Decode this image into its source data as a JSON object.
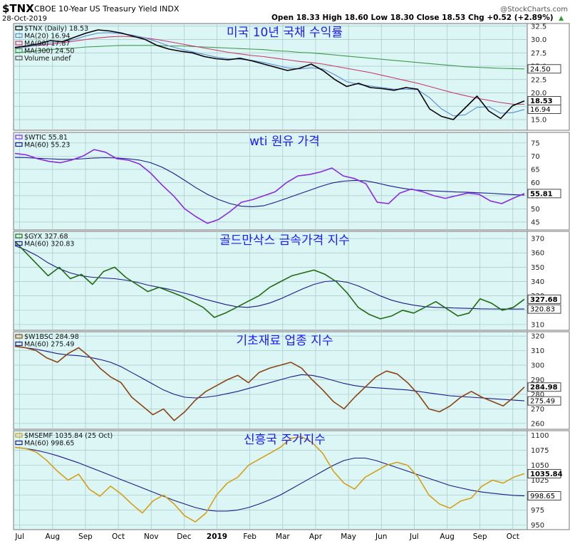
{
  "header": {
    "symbol": "$TNX",
    "description": "CBOE 10-Year US Treasury Yield  INDX",
    "date": "28-Oct-2019",
    "credit": "@StockCharts.com",
    "ohlc": "Open 18.33  High 18.60  Low 18.30  Close 18.53  Chg +0.52 (+2.89%)",
    "ohlc_arrow": "▲"
  },
  "x_axis": {
    "labels": [
      "Jul",
      "Aug",
      "Sep",
      "Oct",
      "Nov",
      "Dec",
      "2019",
      "Feb",
      "Mar",
      "Apr",
      "May",
      "Jun",
      "Jul",
      "Aug",
      "Sep",
      "Oct"
    ]
  },
  "chart_data": [
    {
      "type": "line",
      "panel": "tnx",
      "annotation": "미국 10년 국채 수익률",
      "legend": [
        "$TNX (Daily) 18.53",
        "MA(20) 16.94",
        "MA(90) 17.87",
        "MA(300) 24.50",
        "Volume undef"
      ],
      "ylim": [
        13,
        33
      ],
      "ticks": [
        "32.5",
        "30.0",
        "27.5",
        "25.0",
        "22.5",
        "20.0",
        "17.5",
        "15.0"
      ],
      "last_labels": [
        "24.50",
        "18.53",
        "16.94"
      ],
      "series": [
        {
          "name": "$TNX",
          "color": "#000000",
          "values": [
            28.5,
            28.8,
            29.2,
            29.8,
            29.6,
            30.4,
            31.2,
            31.8,
            31.6,
            31.2,
            30.6,
            30.0,
            28.9,
            28.2,
            27.8,
            27.5,
            26.8,
            26.4,
            26.2,
            26.5,
            26.0,
            25.4,
            24.8,
            24.2,
            24.6,
            25.4,
            24.2,
            22.5,
            21.2,
            21.8,
            21.0,
            20.8,
            20.5,
            21.0,
            20.7,
            17.0,
            15.6,
            15.0,
            17.2,
            19.4,
            16.6,
            15.2,
            17.6,
            18.5
          ]
        },
        {
          "name": "MA(20)",
          "color": "#5a8bd6",
          "values": [
            28.4,
            28.6,
            29.0,
            29.4,
            29.6,
            30.0,
            30.7,
            31.2,
            31.3,
            31.1,
            30.8,
            30.3,
            29.6,
            28.8,
            28.2,
            27.7,
            27.2,
            26.7,
            26.4,
            26.3,
            26.1,
            25.7,
            25.2,
            24.7,
            24.5,
            24.7,
            24.5,
            23.4,
            22.1,
            21.6,
            21.3,
            21.0,
            20.7,
            20.7,
            20.6,
            19.1,
            17.0,
            15.7,
            15.9,
            17.3,
            17.4,
            16.2,
            16.3,
            16.9
          ]
        },
        {
          "name": "MA(90)",
          "color": "#c8386a",
          "values": [
            28.6,
            28.7,
            28.9,
            29.1,
            29.4,
            29.7,
            30.0,
            30.3,
            30.5,
            30.6,
            30.5,
            30.3,
            30.0,
            29.6,
            29.2,
            28.8,
            28.4,
            28.0,
            27.6,
            27.3,
            27.0,
            26.8,
            26.5,
            26.2,
            25.9,
            25.7,
            25.4,
            25.0,
            24.6,
            24.2,
            23.8,
            23.3,
            22.8,
            22.3,
            21.8,
            21.2,
            20.6,
            20.0,
            19.5,
            19.0,
            18.6,
            18.2,
            17.9,
            17.87
          ]
        },
        {
          "name": "MA(300)",
          "color": "#3f9a4c",
          "values": [
            27.5,
            27.7,
            27.9,
            28.1,
            28.3,
            28.4,
            28.6,
            28.7,
            28.8,
            28.9,
            28.9,
            28.9,
            28.9,
            28.8,
            28.8,
            28.7,
            28.6,
            28.5,
            28.4,
            28.3,
            28.2,
            28.1,
            27.9,
            27.8,
            27.6,
            27.5,
            27.3,
            27.1,
            26.9,
            26.7,
            26.5,
            26.3,
            26.1,
            25.9,
            25.7,
            25.5,
            25.3,
            25.1,
            24.9,
            24.8,
            24.7,
            24.6,
            24.55,
            24.5
          ]
        }
      ]
    },
    {
      "type": "line",
      "panel": "wtic",
      "annotation": "wti 원유 가격",
      "legend": [
        "$WTIC 55.81",
        "MA(60) 55.23"
      ],
      "ylim": [
        42,
        79
      ],
      "ticks": [
        "75",
        "70",
        "65",
        "60",
        "55",
        "50",
        "45"
      ],
      "last_labels": [
        "55.81"
      ],
      "series": [
        {
          "name": "$WTIC",
          "color": "#8a2be2",
          "values": [
            71.0,
            70.5,
            69.0,
            68.0,
            67.5,
            68.5,
            70.0,
            72.5,
            71.5,
            69.0,
            68.5,
            67.0,
            63.5,
            59.0,
            55.0,
            50.0,
            47.0,
            44.5,
            46.0,
            49.0,
            52.5,
            53.5,
            55.0,
            56.5,
            60.0,
            62.5,
            63.0,
            64.0,
            65.5,
            62.5,
            61.5,
            59.5,
            52.5,
            52.0,
            56.0,
            57.5,
            56.5,
            55.0,
            54.0,
            55.0,
            56.0,
            55.5,
            53.0,
            52.0,
            54.0,
            55.81
          ]
        },
        {
          "name": "MA(60)",
          "color": "#1a1a8c",
          "values": [
            69.5,
            69.4,
            69.2,
            69.0,
            68.8,
            68.8,
            69.0,
            69.3,
            69.4,
            69.3,
            69.0,
            68.5,
            67.5,
            65.8,
            63.5,
            60.8,
            58.0,
            55.5,
            53.5,
            52.0,
            51.0,
            50.8,
            51.2,
            52.5,
            54.0,
            55.5,
            57.0,
            58.5,
            59.8,
            60.5,
            60.8,
            60.6,
            59.8,
            58.8,
            58.0,
            57.3,
            57.0,
            56.8,
            56.6,
            56.4,
            56.3,
            56.1,
            55.9,
            55.6,
            55.4,
            55.23
          ]
        }
      ]
    },
    {
      "type": "line",
      "panel": "gyx",
      "annotation": "골드만삭스 금속가격 지수",
      "legend": [
        "$GYX 327.68",
        "MA(60) 320.83"
      ],
      "ylim": [
        306,
        375
      ],
      "ticks": [
        "370",
        "360",
        "350",
        "340",
        "330",
        "320",
        "310"
      ],
      "last_labels": [
        "327.68",
        "320.83"
      ],
      "series": [
        {
          "name": "$GYX",
          "color": "#1f6b12",
          "values": [
            368.0,
            360.0,
            352.0,
            344.0,
            350.0,
            342.0,
            345.0,
            338.0,
            347.0,
            350.0,
            343.0,
            338.0,
            333.0,
            336.0,
            333.0,
            330.0,
            326.0,
            322.0,
            315.0,
            318.0,
            322.0,
            326.0,
            330.0,
            336.0,
            340.0,
            344.0,
            346.0,
            348.0,
            345.0,
            340.0,
            332.0,
            322.0,
            317.0,
            314.0,
            316.0,
            320.0,
            318.0,
            322.0,
            326.0,
            321.0,
            316.0,
            318.0,
            328.0,
            325.0,
            320.0,
            322.0,
            327.68
          ]
        },
        {
          "name": "MA(60)",
          "color": "#1a1a8c",
          "values": [
            365.0,
            362.0,
            358.0,
            353.0,
            349.0,
            346.0,
            344.0,
            343.0,
            342.5,
            342.0,
            341.0,
            339.5,
            337.5,
            336.0,
            334.5,
            332.5,
            330.5,
            328.0,
            326.0,
            324.0,
            322.5,
            322.0,
            323.0,
            325.0,
            328.0,
            331.5,
            335.0,
            338.0,
            340.0,
            340.5,
            339.5,
            337.0,
            333.5,
            330.0,
            327.0,
            325.0,
            323.5,
            322.5,
            322.0,
            321.8,
            321.5,
            321.3,
            321.0,
            320.9,
            320.85,
            320.8,
            320.83
          ]
        }
      ]
    },
    {
      "type": "line",
      "panel": "w1bsc",
      "annotation": "기초재료 업종 지수",
      "legend": [
        "$W1BSC 284.98",
        "MA(60) 275.49"
      ],
      "ylim": [
        256,
        323
      ],
      "ticks": [
        "320",
        "310",
        "300",
        "290",
        "280",
        "270",
        "260"
      ],
      "last_labels": [
        "284.98",
        "275.49"
      ],
      "series": [
        {
          "name": "$W1BSC",
          "color": "#8b4513",
          "values": [
            313.0,
            312.0,
            310.0,
            305.0,
            302.0,
            308.0,
            312.0,
            306.0,
            298.0,
            292.0,
            288.0,
            278.0,
            272.0,
            266.0,
            270.0,
            262.0,
            268.0,
            276.0,
            282.0,
            286.0,
            290.0,
            293.0,
            288.0,
            295.0,
            298.0,
            300.0,
            302.0,
            298.0,
            290.0,
            283.0,
            275.0,
            270.0,
            278.0,
            285.0,
            292.0,
            296.0,
            294.0,
            288.0,
            280.0,
            270.0,
            268.0,
            272.0,
            278.0,
            282.0,
            278.0,
            275.0,
            272.0,
            278.0,
            284.98
          ]
        },
        {
          "name": "MA(60)",
          "color": "#1a1a8c",
          "values": [
            313.0,
            312.0,
            311.0,
            309.5,
            308.0,
            307.0,
            306.5,
            305.5,
            304.0,
            302.0,
            299.0,
            295.0,
            291.0,
            287.0,
            283.0,
            280.0,
            278.0,
            277.5,
            278.0,
            279.0,
            280.5,
            282.0,
            284.0,
            286.0,
            288.0,
            290.0,
            292.0,
            293.5,
            293.0,
            291.5,
            289.5,
            287.5,
            286.0,
            285.0,
            284.5,
            284.0,
            283.5,
            283.0,
            282.0,
            281.0,
            280.0,
            279.0,
            278.5,
            278.0,
            277.5,
            277.0,
            276.5,
            276.0,
            275.49
          ]
        }
      ]
    },
    {
      "type": "line",
      "panel": "msemf",
      "annotation": "신흥국 주가지수",
      "legend": [
        "$MSEMF 1035.84 (25 Oct)",
        "MA(60) 998.65"
      ],
      "ylim": [
        942,
        1108
      ],
      "ticks": [
        "1100",
        "1075",
        "1050",
        "1025",
        "1000",
        "975",
        "950"
      ],
      "last_labels": [
        "1035.84",
        "998.65"
      ],
      "series": [
        {
          "name": "$MSEMF",
          "color": "#d4a017",
          "values": [
            1080.0,
            1078.0,
            1072.0,
            1058.0,
            1040.0,
            1025.0,
            1035.0,
            1010.0,
            998.0,
            1015.0,
            1002.0,
            985.0,
            970.0,
            990.0,
            1000.0,
            985.0,
            965.0,
            955.0,
            970.0,
            1000.0,
            1020.0,
            1030.0,
            1050.0,
            1060.0,
            1070.0,
            1080.0,
            1095.0,
            1098.0,
            1088.0,
            1070.0,
            1040.0,
            1020.0,
            1010.0,
            1030.0,
            1040.0,
            1050.0,
            1055.0,
            1050.0,
            1030.0,
            1000.0,
            985.0,
            978.0,
            990.0,
            995.0,
            1015.0,
            1025.0,
            1020.0,
            1030.0,
            1035.84
          ]
        },
        {
          "name": "MA(60)",
          "color": "#1a1a8c",
          "values": [
            1080.0,
            1078.0,
            1075.0,
            1071.0,
            1066.0,
            1060.0,
            1054.0,
            1047.0,
            1040.0,
            1033.0,
            1026.0,
            1019.0,
            1012.0,
            1005.0,
            998.0,
            991.0,
            985.0,
            979.0,
            975.0,
            973.0,
            973.0,
            975.0,
            979.0,
            985.0,
            992.0,
            1000.0,
            1010.0,
            1020.0,
            1030.0,
            1040.0,
            1050.0,
            1058.0,
            1062.0,
            1062.0,
            1058.0,
            1052.0,
            1046.0,
            1040.0,
            1034.0,
            1028.0,
            1022.0,
            1016.0,
            1012.0,
            1008.0,
            1005.0,
            1003.0,
            1001.0,
            999.5,
            998.65
          ]
        }
      ]
    }
  ]
}
